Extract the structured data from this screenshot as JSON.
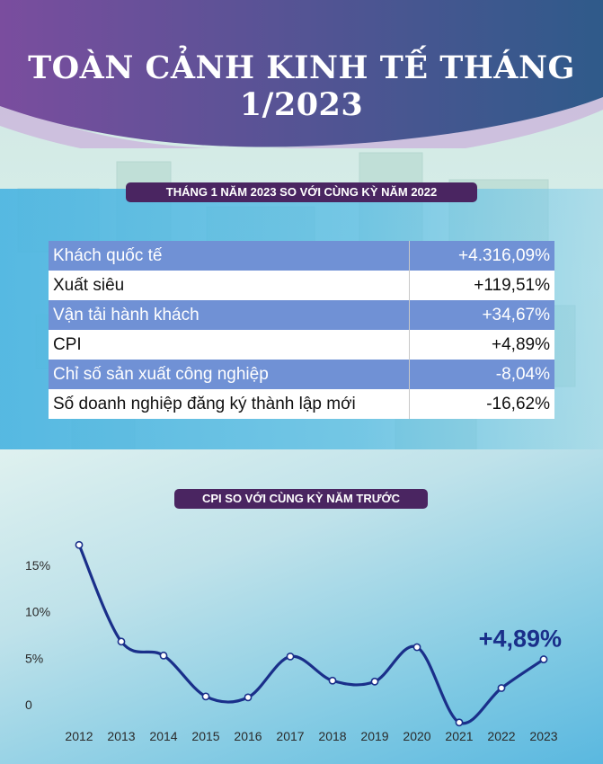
{
  "title": "TOÀN CẢNH KINH TẾ THÁNG 1/2023",
  "table_heading": "THÁNG 1 NĂM 2023 SO VỚI CÙNG KỲ NĂM 2022",
  "rows": [
    {
      "label": "Khách quốc tế",
      "value": "+4.316,09%"
    },
    {
      "label": "Xuất siêu",
      "value": "+119,51%"
    },
    {
      "label": "Vận tải hành khách",
      "value": "+34,67%"
    },
    {
      "label": "CPI",
      "value": "+4,89%"
    },
    {
      "label": "Chỉ số sản xuất công nghiệp",
      "value": "-8,04%"
    },
    {
      "label": "Số doanh nghiệp đăng ký thành lập mới",
      "value": "-16,62%"
    }
  ],
  "colors": {
    "header_gradient_start": "#7a4d9e",
    "header_gradient_end": "#2f5a8a",
    "heading_pill": "#4a2561",
    "shaded_row": "#7091d5",
    "line": "#1a2f8a",
    "highlight_text": "#1a2f8a"
  },
  "chart_data": {
    "type": "line",
    "title": "CPI SO VỚI CÙNG KỲ NĂM TRƯỚC",
    "x": [
      "2012",
      "2013",
      "2014",
      "2015",
      "2016",
      "2017",
      "2018",
      "2019",
      "2020",
      "2021",
      "2022",
      "2023"
    ],
    "values": [
      17.2,
      6.8,
      5.3,
      0.9,
      0.8,
      5.2,
      2.6,
      2.5,
      6.2,
      -1.9,
      1.8,
      4.89
    ],
    "ytick_labels": [
      "0",
      "5%",
      "10%",
      "15%"
    ],
    "ytick_values": [
      0,
      5,
      10,
      15
    ],
    "ylim": [
      -2.5,
      18
    ],
    "grid": false,
    "annotation": {
      "text": "+4,89%",
      "x": "2023"
    }
  }
}
